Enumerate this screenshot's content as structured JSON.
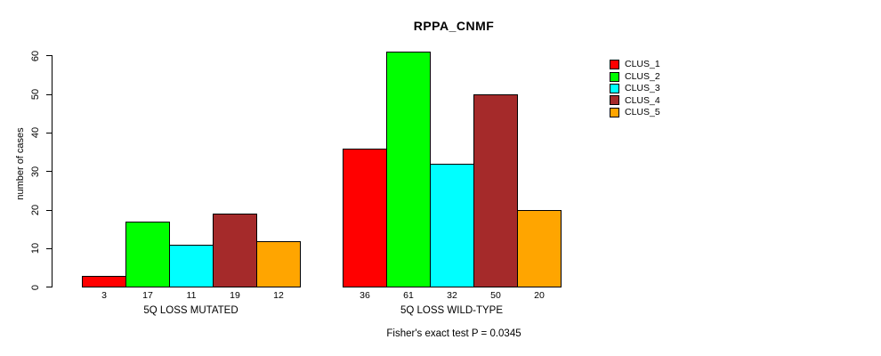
{
  "chart_data": {
    "type": "bar",
    "title": "RPPA_CNMF",
    "ylabel": "number of cases",
    "xlabel": "",
    "ylim": [
      0,
      60
    ],
    "yticks": [
      0,
      10,
      20,
      30,
      40,
      50,
      60
    ],
    "categories": [
      "5Q LOSS MUTATED",
      "5Q LOSS WILD-TYPE"
    ],
    "series": [
      {
        "name": "CLUS_1",
        "color": "#FF0000",
        "values": [
          3,
          36
        ]
      },
      {
        "name": "CLUS_2",
        "color": "#00FF00",
        "values": [
          17,
          61
        ]
      },
      {
        "name": "CLUS_3",
        "color": "#00FFFF",
        "values": [
          11,
          32
        ]
      },
      {
        "name": "CLUS_4",
        "color": "#A52A2A",
        "values": [
          19,
          50
        ]
      },
      {
        "name": "CLUS_5",
        "color": "#FFA500",
        "values": [
          12,
          20
        ]
      }
    ],
    "bar_value_labels": [
      [
        3,
        17,
        11,
        19,
        12
      ],
      [
        36,
        61,
        32,
        50,
        20
      ]
    ],
    "annotation": "Fisher's exact test P = 0.0345",
    "legend": {
      "position": "right",
      "entries": [
        "CLUS_1",
        "CLUS_2",
        "CLUS_3",
        "CLUS_4",
        "CLUS_5"
      ]
    },
    "grid": false
  }
}
